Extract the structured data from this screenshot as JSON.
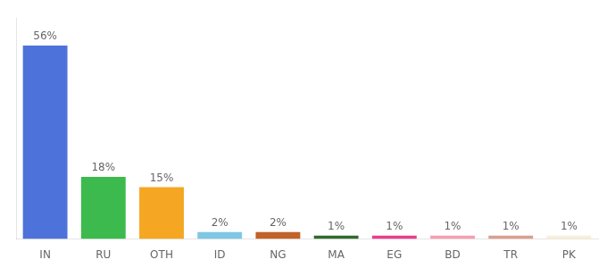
{
  "chart_data": {
    "type": "bar",
    "categories": [
      "IN",
      "RU",
      "OTH",
      "ID",
      "NG",
      "MA",
      "EG",
      "BD",
      "TR",
      "PK"
    ],
    "values": [
      56,
      18,
      15,
      2,
      2,
      1,
      1,
      1,
      1,
      1
    ],
    "value_labels": [
      "56%",
      "18%",
      "15%",
      "2%",
      "2%",
      "1%",
      "1%",
      "1%",
      "1%",
      "1%"
    ],
    "colors": [
      "#4d72d9",
      "#3dba4e",
      "#f5a623",
      "#7ec8e3",
      "#c1622a",
      "#2e6b2e",
      "#e83e8c",
      "#f4a0b0",
      "#d9a090",
      "#f5f0d8"
    ],
    "ylim": [
      0,
      64
    ],
    "data_labels": true,
    "tick_labels": "x",
    "grid": false
  }
}
